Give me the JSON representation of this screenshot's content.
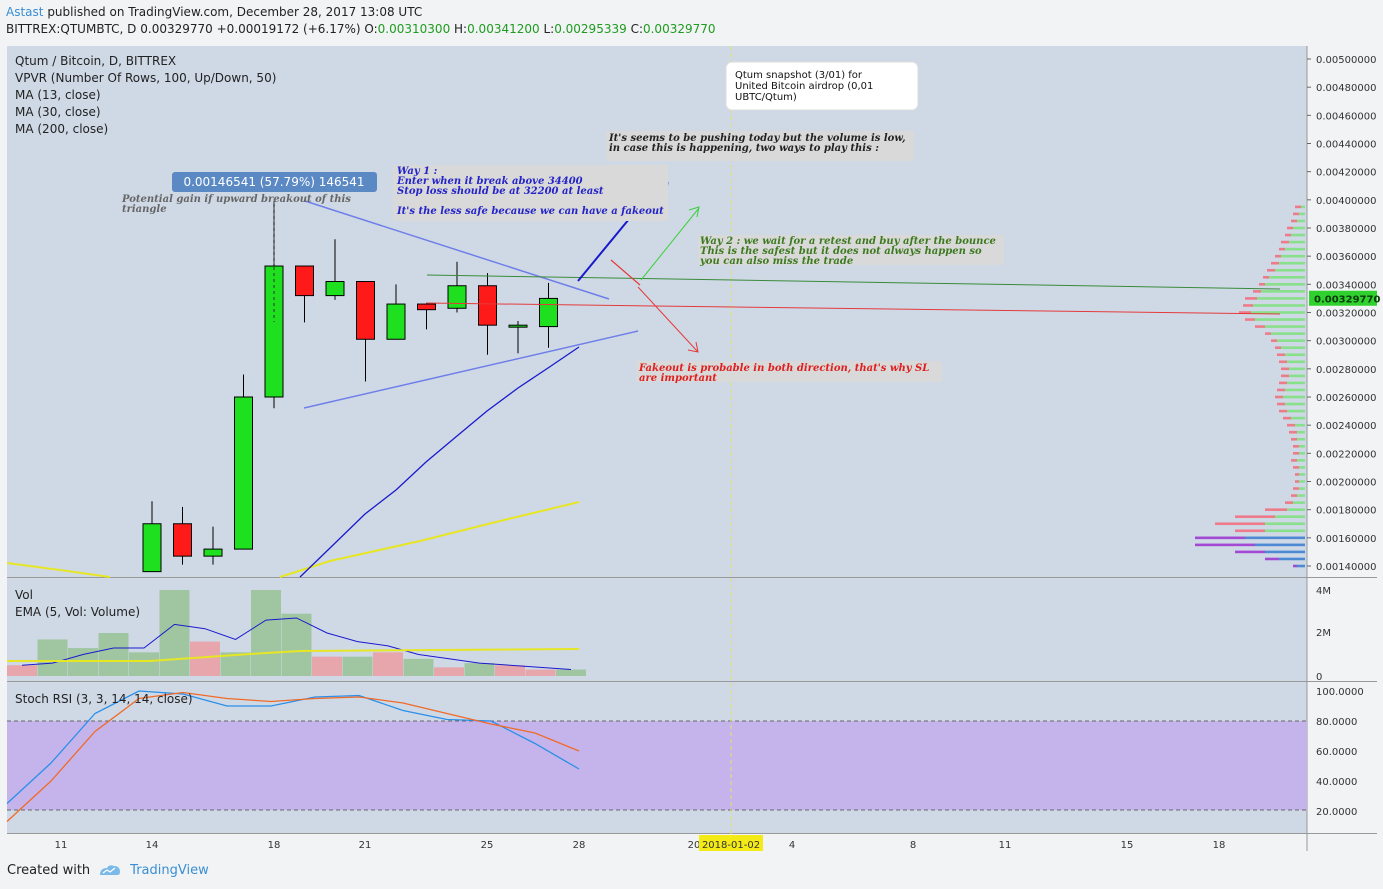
{
  "header": {
    "author": "Astast",
    "published": "published on TradingView.com, December 28, 2017 13:08 UTC",
    "symbol": "BITTREX:QTUMBTC, D",
    "last": "0.00329770",
    "change": "+0.00019172 (+6.17%)",
    "open_label": "O:",
    "open": "0.00310300",
    "high_label": "H:",
    "high": "0.00341200",
    "low_label": "L:",
    "low": "0.00295339",
    "close_label": "C:",
    "close": "0.00329770"
  },
  "legend": {
    "title": "Qtum / Bitcoin, D, BITTREX",
    "vpvr": "VPVR (Number Of Rows, 100, Up/Down, 50)",
    "ma13": "MA (13, close)",
    "ma30": "MA (30, close)",
    "ma200": "MA (200, close)"
  },
  "volume_pane": {
    "title": "Vol",
    "ema": "EMA (5, Vol: Volume)"
  },
  "stoch_pane": {
    "title": "Stoch RSI (3, 3, 14, 14, close)"
  },
  "annotations": {
    "snapshot": [
      "Qtum snapshot (3/01) for",
      "United Bitcoin airdrop (0,01",
      "UBTC/Qtum)"
    ],
    "pushing": [
      "It's seems to be pushing today but the volume is low,",
      "in case this is happening, two ways to play this :"
    ],
    "way1": [
      "Way 1 :",
      "Enter when it break above 34400",
      "Stop loss should be at 32200 at least",
      "",
      "It's the less safe because we can have a fakeout"
    ],
    "way2": [
      "Way 2 : we wait for a retest and buy after the bounce",
      "This is the safest but it does not always happen so",
      "you can also miss the trade"
    ],
    "fakeout": [
      "Fakeout is probable in both direction, that's why SL",
      "are important"
    ],
    "gain_label": "0.00146541 (57.79%) 146541",
    "gain_note": [
      "Potential gain if upward breakout of this",
      "triangle"
    ]
  },
  "footer": {
    "created_with": "Created with",
    "brand": "TradingView"
  },
  "colors": {
    "up": "#1ee01e",
    "down": "#ff1a1a",
    "pane_bg": "#cfd9e6",
    "stoch_band": "#c5b4ec",
    "ma13": "#1a1acc",
    "ma30": "#e6e625"
  },
  "chart_data": {
    "type": "candlestick",
    "x_tick_labels": [
      "11",
      "14",
      "18",
      "21",
      "25",
      "28",
      "20",
      "2018-01-02",
      "4",
      "8",
      "11",
      "15",
      "18"
    ],
    "price_axis": {
      "labels": [
        "0.00500000",
        "0.00480000",
        "0.00460000",
        "0.00440000",
        "0.00420000",
        "0.00400000",
        "0.00380000",
        "0.00360000",
        "0.00340000",
        "0.00320000",
        "0.00300000",
        "0.00280000",
        "0.00260000",
        "0.00240000",
        "0.00220000",
        "0.00200000",
        "0.00180000",
        "0.00160000",
        "0.00140000"
      ],
      "last_price": "0.00329770"
    },
    "volume_axis": {
      "labels": [
        "4M",
        "2M",
        "0"
      ],
      "ylim": [
        0,
        4
      ]
    },
    "stoch_axis": {
      "labels": [
        "100.0000",
        "80.0000",
        "60.0000",
        "40.0000",
        "20.0000"
      ],
      "ylim": [
        20,
        100
      ],
      "band": [
        20,
        80
      ]
    },
    "candles": [
      {
        "day": 14,
        "o": 0.00136,
        "h": 0.00186,
        "l": 0.00136,
        "c": 0.0017
      },
      {
        "day": 15,
        "o": 0.0017,
        "h": 0.00182,
        "l": 0.00141,
        "c": 0.00147
      },
      {
        "day": 16,
        "o": 0.00147,
        "h": 0.00168,
        "l": 0.00141,
        "c": 0.00152
      },
      {
        "day": 17,
        "o": 0.00152,
        "h": 0.00276,
        "l": 0.00152,
        "c": 0.0026
      },
      {
        "day": 18,
        "o": 0.0026,
        "h": 0.00399,
        "l": 0.00252,
        "c": 0.00353
      },
      {
        "day": 19,
        "o": 0.00353,
        "h": 0.00353,
        "l": 0.00313,
        "c": 0.00332
      },
      {
        "day": 20,
        "o": 0.00332,
        "h": 0.00372,
        "l": 0.00329,
        "c": 0.00342
      },
      {
        "day": 21,
        "o": 0.00342,
        "h": 0.00342,
        "l": 0.00271,
        "c": 0.00301
      },
      {
        "day": 22,
        "o": 0.00301,
        "h": 0.0034,
        "l": 0.00301,
        "c": 0.00326
      },
      {
        "day": 23,
        "o": 0.00326,
        "h": 0.00327,
        "l": 0.00308,
        "c": 0.00322
      },
      {
        "day": 24,
        "o": 0.00323,
        "h": 0.00356,
        "l": 0.0032,
        "c": 0.00339
      },
      {
        "day": 25,
        "o": 0.00339,
        "h": 0.00348,
        "l": 0.0029,
        "c": 0.00311
      },
      {
        "day": 26,
        "o": 0.00311,
        "h": 0.00314,
        "l": 0.00291,
        "c": 0.00311
      },
      {
        "day": 27,
        "o": 0.0031,
        "h": 0.00341,
        "l": 0.00295,
        "c": 0.0033
      }
    ],
    "volume_millions": [
      0.5,
      1.7,
      1.3,
      2.0,
      1.1,
      4.0,
      1.6,
      1.1,
      4.0,
      2.9,
      0.9,
      0.9,
      1.1,
      0.8,
      0.4,
      0.6,
      0.5,
      0.3,
      0.3
    ],
    "volume_up": [
      false,
      true,
      true,
      true,
      true,
      true,
      false,
      true,
      true,
      true,
      false,
      true,
      false,
      true,
      false,
      true,
      false,
      false,
      true
    ],
    "volume_ema_millions": [
      0.5,
      0.6,
      1.0,
      1.3,
      1.3,
      2.4,
      2.2,
      1.7,
      2.6,
      2.7,
      2.0,
      1.6,
      1.4,
      1.0,
      0.8,
      0.6,
      0.5,
      0.4,
      0.3
    ],
    "stoch_k": [
      25,
      52,
      85,
      100,
      98,
      90,
      90,
      96,
      97,
      87,
      81,
      80,
      65,
      48
    ],
    "stoch_d": [
      13,
      40,
      73,
      95,
      99,
      95,
      93,
      95,
      96,
      92,
      85,
      78,
      72,
      60
    ]
  }
}
